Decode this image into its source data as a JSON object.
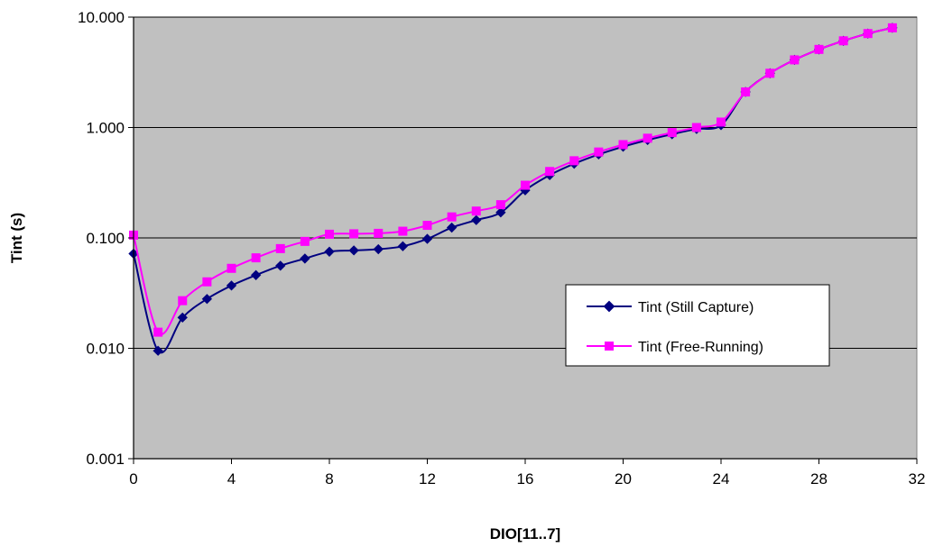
{
  "chart_data": {
    "type": "line",
    "title": "",
    "xlabel": "DIO[11..7]",
    "ylabel": "Tint (s)",
    "xlim": [
      0,
      32
    ],
    "ylim": [
      0.001,
      10
    ],
    "yscale": "log",
    "x_ticks": [
      0,
      4,
      8,
      12,
      16,
      20,
      24,
      28,
      32
    ],
    "x_tick_labels": [
      "0",
      "4",
      "8",
      "12",
      "16",
      "20",
      "24",
      "28",
      "32"
    ],
    "y_ticks": [
      0.001,
      0.01,
      0.1,
      1,
      10
    ],
    "y_tick_labels": [
      "0.001",
      "0.010",
      "0.100",
      "1.000",
      "10.000"
    ],
    "grid": "horizontal",
    "plot_background": "#c0c0c0",
    "legend_position": "center-right",
    "x": [
      0,
      1,
      2,
      3,
      4,
      5,
      6,
      7,
      8,
      9,
      10,
      11,
      12,
      13,
      14,
      15,
      16,
      17,
      18,
      19,
      20,
      21,
      22,
      23,
      24,
      25,
      26,
      27,
      28,
      29,
      30,
      31
    ],
    "series": [
      {
        "name": "Tint (Still Capture)",
        "color": "#000080",
        "marker": "diamond",
        "values": [
          0.072,
          0.0095,
          0.019,
          0.028,
          0.037,
          0.046,
          0.056,
          0.065,
          0.075,
          0.077,
          0.079,
          0.084,
          0.098,
          0.124,
          0.145,
          0.17,
          0.27,
          0.37,
          0.47,
          0.57,
          0.67,
          0.77,
          0.87,
          0.97,
          1.05,
          2.1,
          3.1,
          4.1,
          5.1,
          6.1,
          7.1,
          8.0
        ]
      },
      {
        "name": "Tint (Free-Running)",
        "color": "#ff00ff",
        "marker": "square",
        "values": [
          0.106,
          0.014,
          0.027,
          0.04,
          0.053,
          0.066,
          0.08,
          0.093,
          0.108,
          0.109,
          0.11,
          0.115,
          0.13,
          0.155,
          0.175,
          0.2,
          0.3,
          0.4,
          0.5,
          0.6,
          0.7,
          0.8,
          0.9,
          1.0,
          1.12,
          2.1,
          3.1,
          4.1,
          5.1,
          6.1,
          7.1,
          8.0
        ]
      }
    ]
  }
}
